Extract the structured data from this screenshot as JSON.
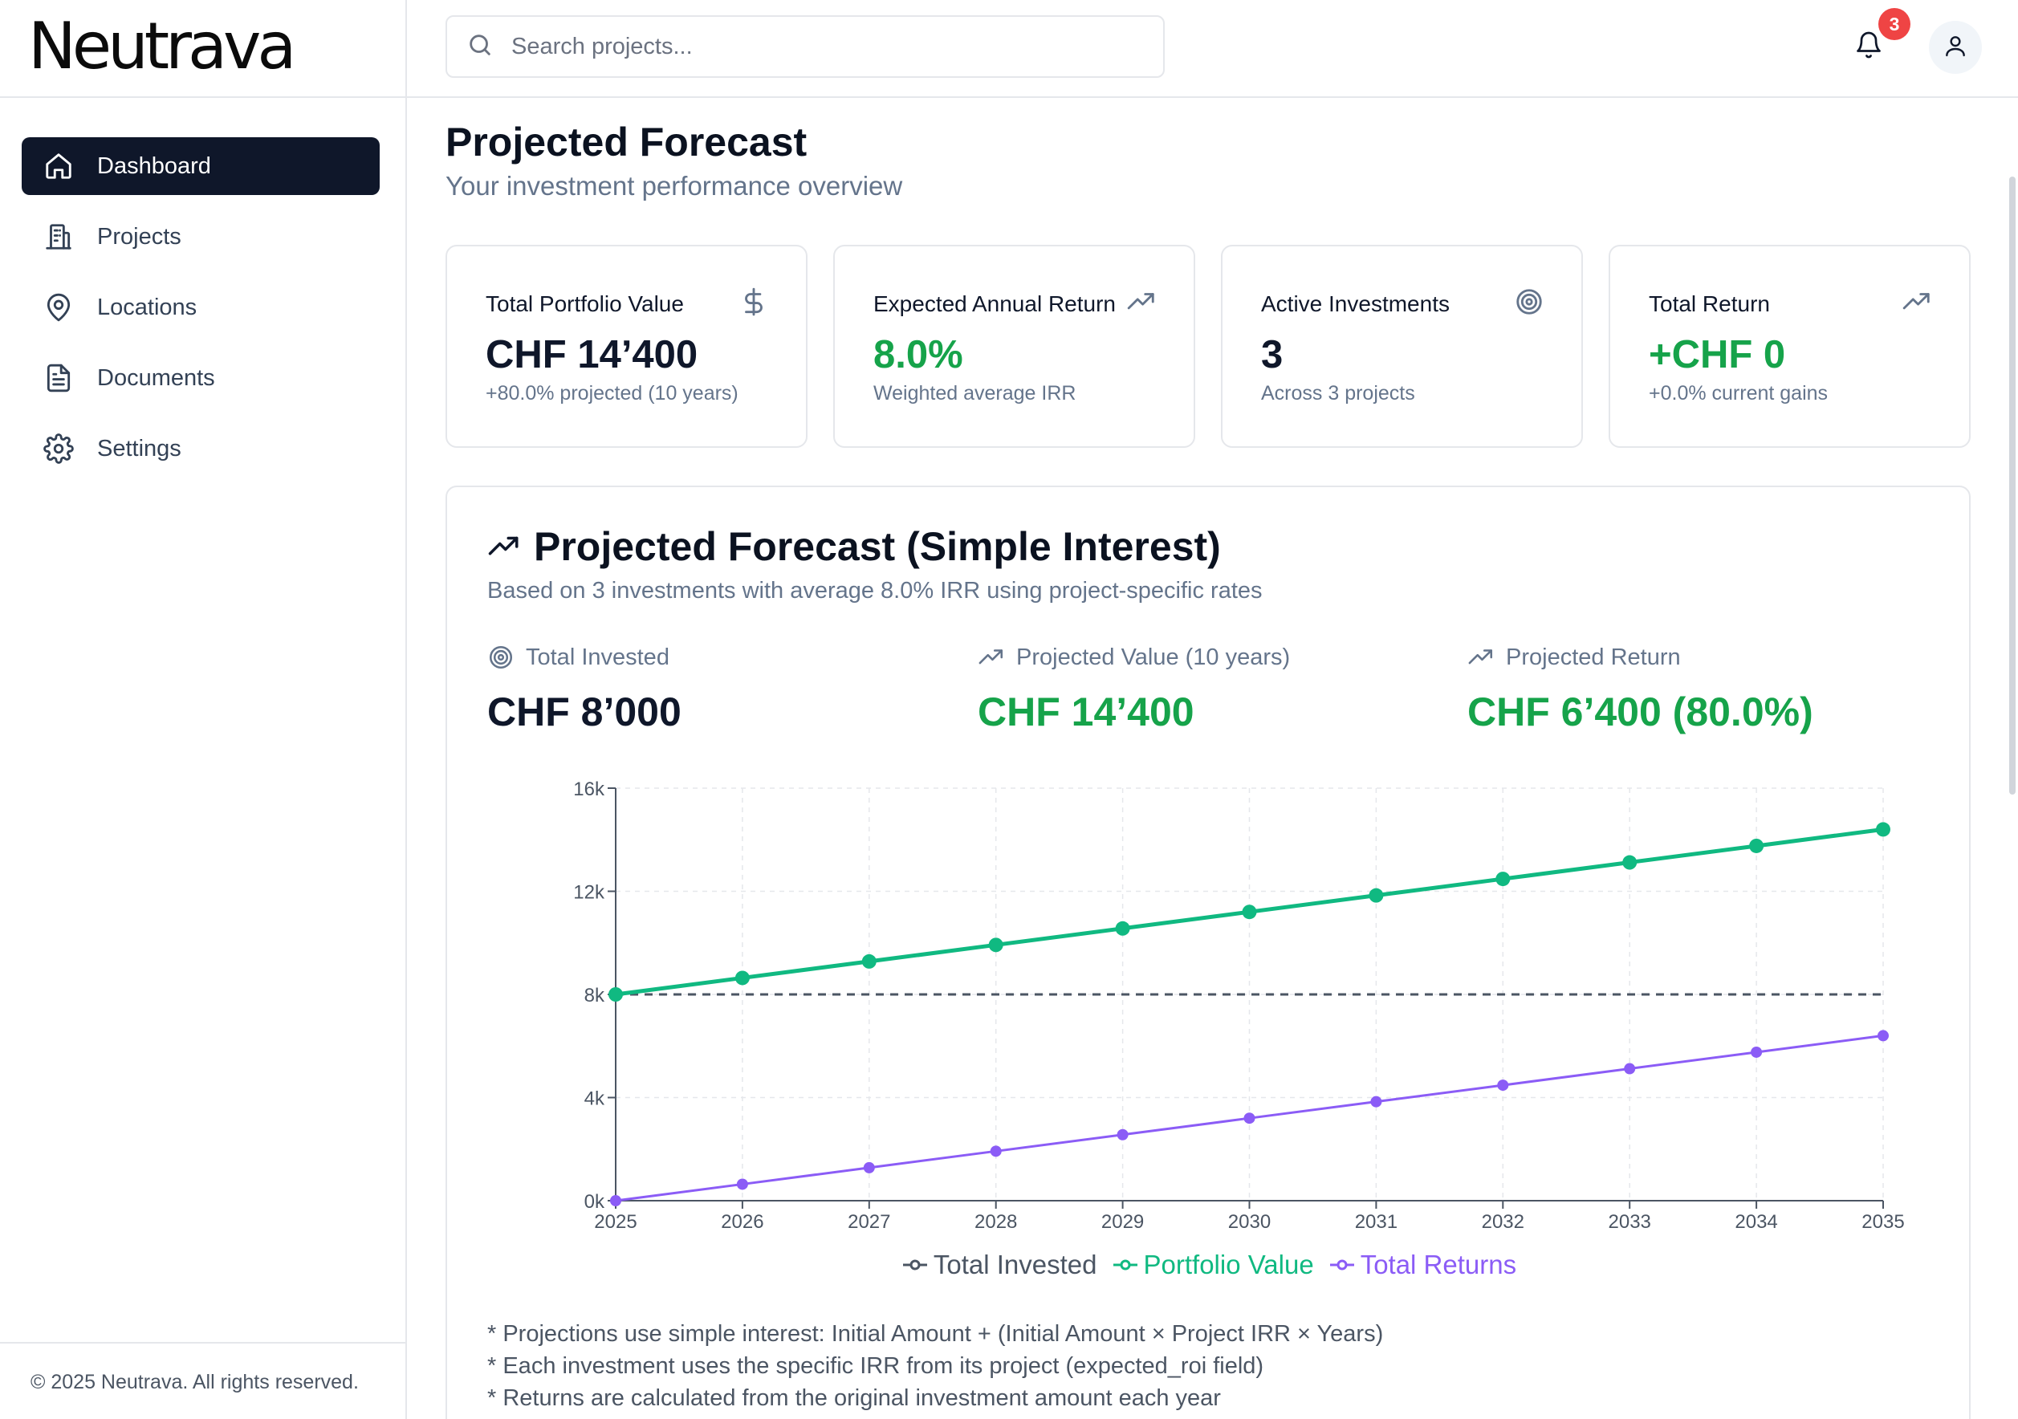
{
  "brand": {
    "logo": "Neutrava"
  },
  "sidebar": {
    "items": [
      {
        "label": "Dashboard",
        "icon": "home-icon",
        "active": true
      },
      {
        "label": "Projects",
        "icon": "building-icon"
      },
      {
        "label": "Locations",
        "icon": "map-pin-icon"
      },
      {
        "label": "Documents",
        "icon": "document-icon"
      },
      {
        "label": "Settings",
        "icon": "gear-icon"
      }
    ],
    "footer": "© 2025 Neutrava. All rights reserved."
  },
  "topbar": {
    "search_placeholder": "Search projects...",
    "notifications_count": "3"
  },
  "header": {
    "title": "Projected Forecast",
    "subtitle": "Your investment performance overview"
  },
  "stats": [
    {
      "label": "Total Portfolio Value",
      "value": "CHF 14’400",
      "sub": "+80.0% projected (10 years)",
      "icon": "dollar-icon"
    },
    {
      "label": "Expected Annual Return",
      "value": "8.0%",
      "sub": "Weighted average IRR",
      "icon": "trending-up-icon"
    },
    {
      "label": "Active Investments",
      "value": "3",
      "sub": "Across 3 projects",
      "icon": "target-icon"
    },
    {
      "label": "Total Return",
      "value": "+CHF 0",
      "sub": "+0.0% current gains",
      "icon": "trending-up-icon"
    }
  ],
  "forecast": {
    "title": "Projected Forecast (Simple Interest)",
    "description": "Based on 3 investments with average 8.0% IRR using project-specific rates",
    "metrics": [
      {
        "label": "Total Invested",
        "value": "CHF 8’000",
        "icon": "target-icon"
      },
      {
        "label": "Projected Value (10 years)",
        "value": "CHF 14’400",
        "icon": "trending-up-icon"
      },
      {
        "label": "Projected Return",
        "value": "CHF 6’400 (80.0%)",
        "icon": "trending-up-icon"
      }
    ],
    "notes": [
      "* Projections use simple interest: Initial Amount + (Initial Amount × Project IRR × Years)",
      "* Each investment uses the specific IRR from its project (expected_roi field)",
      "* Returns are calculated from the original investment amount each year"
    ]
  },
  "colors": {
    "invested": "#4b5563",
    "portfolio": "#10b981",
    "returns": "#8b5cf6",
    "positive": "#16a34a"
  },
  "chart_data": {
    "type": "line",
    "x": [
      "2025",
      "2026",
      "2027",
      "2028",
      "2029",
      "2030",
      "2031",
      "2032",
      "2033",
      "2034",
      "2035"
    ],
    "y_ticks": [
      "0k",
      "4k",
      "8k",
      "12k",
      "16k"
    ],
    "ylim": [
      0,
      16000
    ],
    "grid": true,
    "legend_position": "bottom",
    "series": [
      {
        "name": "Total Invested",
        "values": [
          8000,
          8000,
          8000,
          8000,
          8000,
          8000,
          8000,
          8000,
          8000,
          8000,
          8000
        ],
        "style": "dashed"
      },
      {
        "name": "Portfolio Value",
        "values": [
          8000,
          8640,
          9280,
          9920,
          10560,
          11200,
          11840,
          12480,
          13120,
          13760,
          14400
        ]
      },
      {
        "name": "Total Returns",
        "values": [
          0,
          640,
          1280,
          1920,
          2560,
          3200,
          3840,
          4480,
          5120,
          5760,
          6400
        ]
      }
    ]
  }
}
